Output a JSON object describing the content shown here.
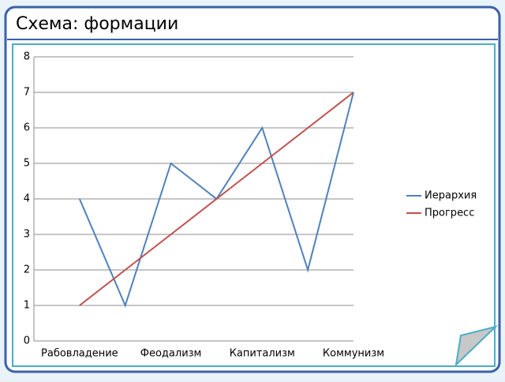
{
  "header": {
    "title": "Схема: формации"
  },
  "chart_data": {
    "type": "line",
    "categories": [
      "Рабовладение",
      null,
      "Феодализм",
      null,
      "Капитализм",
      null,
      "Коммунизм"
    ],
    "series": [
      {
        "name": "Иерархия",
        "color": "#4f81bd",
        "values": [
          4,
          1,
          5,
          4,
          6,
          2,
          7
        ]
      },
      {
        "name": "Прогресс",
        "color": "#c0504d",
        "values": [
          1,
          2,
          3,
          4,
          5,
          6,
          7
        ]
      }
    ],
    "ylim": [
      0,
      8
    ],
    "yticks": [
      0,
      1,
      2,
      3,
      4,
      5,
      6,
      7,
      8
    ],
    "grid": true,
    "legend": "right"
  }
}
